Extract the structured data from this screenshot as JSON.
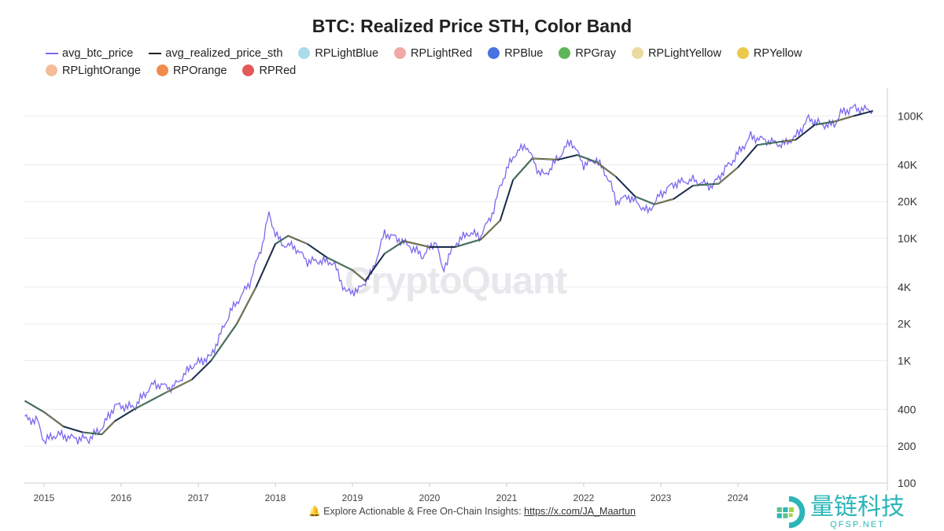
{
  "chart_data": {
    "type": "line",
    "title": "BTC: Realized Price STH, Color Band",
    "legend": [
      {
        "name": "avg_btc_price",
        "color": "#7b68ee",
        "kind": "line"
      },
      {
        "name": "avg_realized_price_sth",
        "color": "#222222",
        "kind": "line"
      },
      {
        "name": "RPLightBlue",
        "color": "#a8dcea",
        "kind": "dot"
      },
      {
        "name": "RPLightRed",
        "color": "#f2a8a4",
        "kind": "dot"
      },
      {
        "name": "RPBlue",
        "color": "#4a72e0",
        "kind": "dot"
      },
      {
        "name": "RPGray",
        "color": "#5fb55a",
        "kind": "dot"
      },
      {
        "name": "RPLightYellow",
        "color": "#ecd9a0",
        "kind": "dot"
      },
      {
        "name": "RPYellow",
        "color": "#ecc94b",
        "kind": "dot"
      },
      {
        "name": "RPLightOrange",
        "color": "#f4bc98",
        "kind": "dot"
      },
      {
        "name": "RPOrange",
        "color": "#f08c4a",
        "kind": "dot"
      },
      {
        "name": "RPRed",
        "color": "#e25a5a",
        "kind": "dot"
      }
    ],
    "legend_position": "top-left",
    "y_scale": "log",
    "ylim": [
      100,
      150000
    ],
    "y_ticks": [
      {
        "v": 100,
        "label": "100"
      },
      {
        "v": 200,
        "label": "200"
      },
      {
        "v": 400,
        "label": "400"
      },
      {
        "v": 1000,
        "label": "1K"
      },
      {
        "v": 2000,
        "label": "2K"
      },
      {
        "v": 4000,
        "label": "4K"
      },
      {
        "v": 10000,
        "label": "10K"
      },
      {
        "v": 20000,
        "label": "20K"
      },
      {
        "v": 40000,
        "label": "40K"
      },
      {
        "v": 100000,
        "label": "100K"
      }
    ],
    "x_ticks": [
      "2015",
      "2016",
      "2017",
      "2018",
      "2019",
      "2020",
      "2021",
      "2022",
      "2023",
      "2024"
    ],
    "grid": true,
    "series": [
      {
        "name": "avg_btc_price",
        "color": "#7b68ee",
        "points": [
          [
            "2014-10",
            340
          ],
          [
            "2014-12",
            320
          ],
          [
            "2015-01",
            220
          ],
          [
            "2015-03",
            250
          ],
          [
            "2015-06",
            230
          ],
          [
            "2015-08",
            230
          ],
          [
            "2015-10",
            280
          ],
          [
            "2015-12",
            430
          ],
          [
            "2016-03",
            415
          ],
          [
            "2016-06",
            650
          ],
          [
            "2016-09",
            600
          ],
          [
            "2016-12",
            900
          ],
          [
            "2017-03",
            1100
          ],
          [
            "2017-06",
            2500
          ],
          [
            "2017-09",
            4300
          ],
          [
            "2017-11",
            9000
          ],
          [
            "2017-12",
            16000
          ],
          [
            "2018-01",
            11000
          ],
          [
            "2018-02",
            9000
          ],
          [
            "2018-04",
            8500
          ],
          [
            "2018-06",
            6500
          ],
          [
            "2018-08",
            6500
          ],
          [
            "2018-10",
            6400
          ],
          [
            "2018-12",
            3600
          ],
          [
            "2019-02",
            3800
          ],
          [
            "2019-04",
            5200
          ],
          [
            "2019-06",
            11000
          ],
          [
            "2019-08",
            10000
          ],
          [
            "2019-10",
            8500
          ],
          [
            "2019-12",
            7200
          ],
          [
            "2020-02",
            9500
          ],
          [
            "2020-03",
            5500
          ],
          [
            "2020-05",
            9000
          ],
          [
            "2020-07",
            11000
          ],
          [
            "2020-09",
            10500
          ],
          [
            "2020-11",
            17000
          ],
          [
            "2020-12",
            27000
          ],
          [
            "2021-02",
            47000
          ],
          [
            "2021-04",
            58000
          ],
          [
            "2021-06",
            35000
          ],
          [
            "2021-07",
            33000
          ],
          [
            "2021-09",
            45000
          ],
          [
            "2021-11",
            63000
          ],
          [
            "2022-01",
            40000
          ],
          [
            "2022-03",
            44000
          ],
          [
            "2022-05",
            30000
          ],
          [
            "2022-06",
            20000
          ],
          [
            "2022-08",
            22000
          ],
          [
            "2022-11",
            16500
          ],
          [
            "2023-01",
            23000
          ],
          [
            "2023-03",
            28000
          ],
          [
            "2023-06",
            30000
          ],
          [
            "2023-09",
            26500
          ],
          [
            "2023-11",
            37000
          ],
          [
            "2023-12",
            42000
          ],
          [
            "2024-03",
            68000
          ],
          [
            "2024-06",
            62000
          ],
          [
            "2024-08",
            58000
          ],
          [
            "2024-10",
            68000
          ],
          [
            "2024-12",
            95000
          ],
          [
            "2025-02",
            85000
          ],
          [
            "2025-04",
            85000
          ],
          [
            "2025-05",
            105000
          ],
          [
            "2025-07",
            118000
          ],
          [
            "2025-08",
            113000
          ],
          [
            "2025-10",
            112000
          ]
        ]
      },
      {
        "name": "avg_realized_price_sth",
        "color": "#222222",
        "points": [
          [
            "2014-10",
            470
          ],
          [
            "2015-01",
            380
          ],
          [
            "2015-04",
            290
          ],
          [
            "2015-07",
            260
          ],
          [
            "2015-10",
            250
          ],
          [
            "2015-12",
            320
          ],
          [
            "2016-03",
            400
          ],
          [
            "2016-08",
            550
          ],
          [
            "2016-12",
            700
          ],
          [
            "2017-03",
            1000
          ],
          [
            "2017-07",
            2000
          ],
          [
            "2017-10",
            4000
          ],
          [
            "2018-01",
            9000
          ],
          [
            "2018-03",
            10500
          ],
          [
            "2018-06",
            9000
          ],
          [
            "2018-09",
            7000
          ],
          [
            "2019-01",
            5500
          ],
          [
            "2019-03",
            4500
          ],
          [
            "2019-06",
            7500
          ],
          [
            "2019-09",
            9500
          ],
          [
            "2020-01",
            8500
          ],
          [
            "2020-05",
            8500
          ],
          [
            "2020-09",
            9800
          ],
          [
            "2020-12",
            14000
          ],
          [
            "2021-02",
            30000
          ],
          [
            "2021-05",
            45000
          ],
          [
            "2021-09",
            44000
          ],
          [
            "2021-12",
            48000
          ],
          [
            "2022-03",
            42000
          ],
          [
            "2022-06",
            32000
          ],
          [
            "2022-09",
            22000
          ],
          [
            "2022-12",
            19000
          ],
          [
            "2023-03",
            21000
          ],
          [
            "2023-06",
            27000
          ],
          [
            "2023-10",
            28000
          ],
          [
            "2024-01",
            38000
          ],
          [
            "2024-04",
            58000
          ],
          [
            "2024-08",
            62000
          ],
          [
            "2024-10",
            64000
          ],
          [
            "2025-01",
            85000
          ],
          [
            "2025-04",
            90000
          ],
          [
            "2025-07",
            100000
          ],
          [
            "2025-10",
            110000
          ]
        ]
      }
    ]
  },
  "watermark": "CryptoQuant",
  "footer": {
    "icon": "bell-icon",
    "text": "Explore Actionable & Free On-Chain Insights:",
    "link": "https://x.com/JA_Maartun"
  },
  "logo": {
    "text": "量链科技",
    "sub": "QFSP.NET"
  }
}
